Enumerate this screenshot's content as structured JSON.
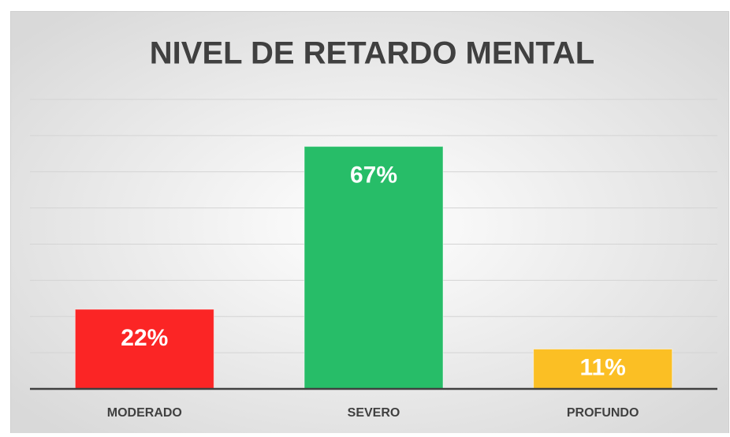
{
  "chart_data": {
    "type": "bar",
    "title": "NIVEL DE RETARDO MENTAL",
    "categories": [
      "MODERADO",
      "SEVERO",
      "PROFUNDO"
    ],
    "values": [
      22,
      67,
      11
    ],
    "value_labels": [
      "22%",
      "67%",
      "11%"
    ],
    "colors": [
      "#fb2525",
      "#27bd68",
      "#fbbf24"
    ],
    "ylim": [
      0,
      80
    ],
    "yticks": [
      0,
      10,
      20,
      30,
      40,
      50,
      60,
      70,
      80
    ],
    "grid": true
  }
}
